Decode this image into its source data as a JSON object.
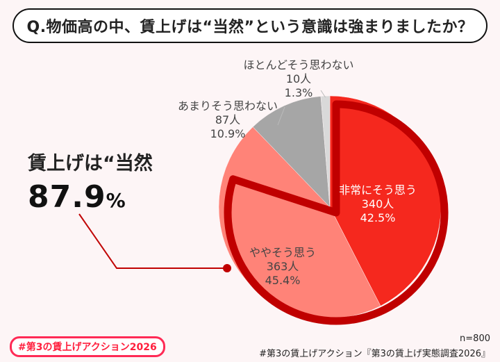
{
  "title": "Q.物価高の中、賃上げは“当然”という意識は強まりましたか？",
  "chart_data": {
    "type": "pie",
    "start": "12 o'clock, clockwise",
    "slices": [
      {
        "label": "非常にそう思う",
        "count": "340人",
        "percent": "42.5%",
        "value": 42.5,
        "color": "#f5281e"
      },
      {
        "label": "ややそう思う",
        "count": "363人",
        "percent": "45.4%",
        "value": 45.4,
        "color": "#ff8378"
      },
      {
        "label": "あまりそう思わない",
        "count": "87人",
        "percent": "10.9%",
        "value": 10.9,
        "color": "#a6a6a6"
      },
      {
        "label": "ほとんどそう思わない",
        "count": "10人",
        "percent": "1.3%",
        "value": 1.3,
        "color": "#d9d9d9"
      }
    ],
    "highlight": {
      "label": "賃上げは“当然",
      "value": "87.9",
      "unit": "%",
      "color": "#c00000"
    }
  },
  "footer": {
    "hashtag": "#第3の賃上げアクション2026",
    "n": "n=800",
    "source": "#第3の賃上げアクション『第3の賃上げ実態調査2026』"
  }
}
